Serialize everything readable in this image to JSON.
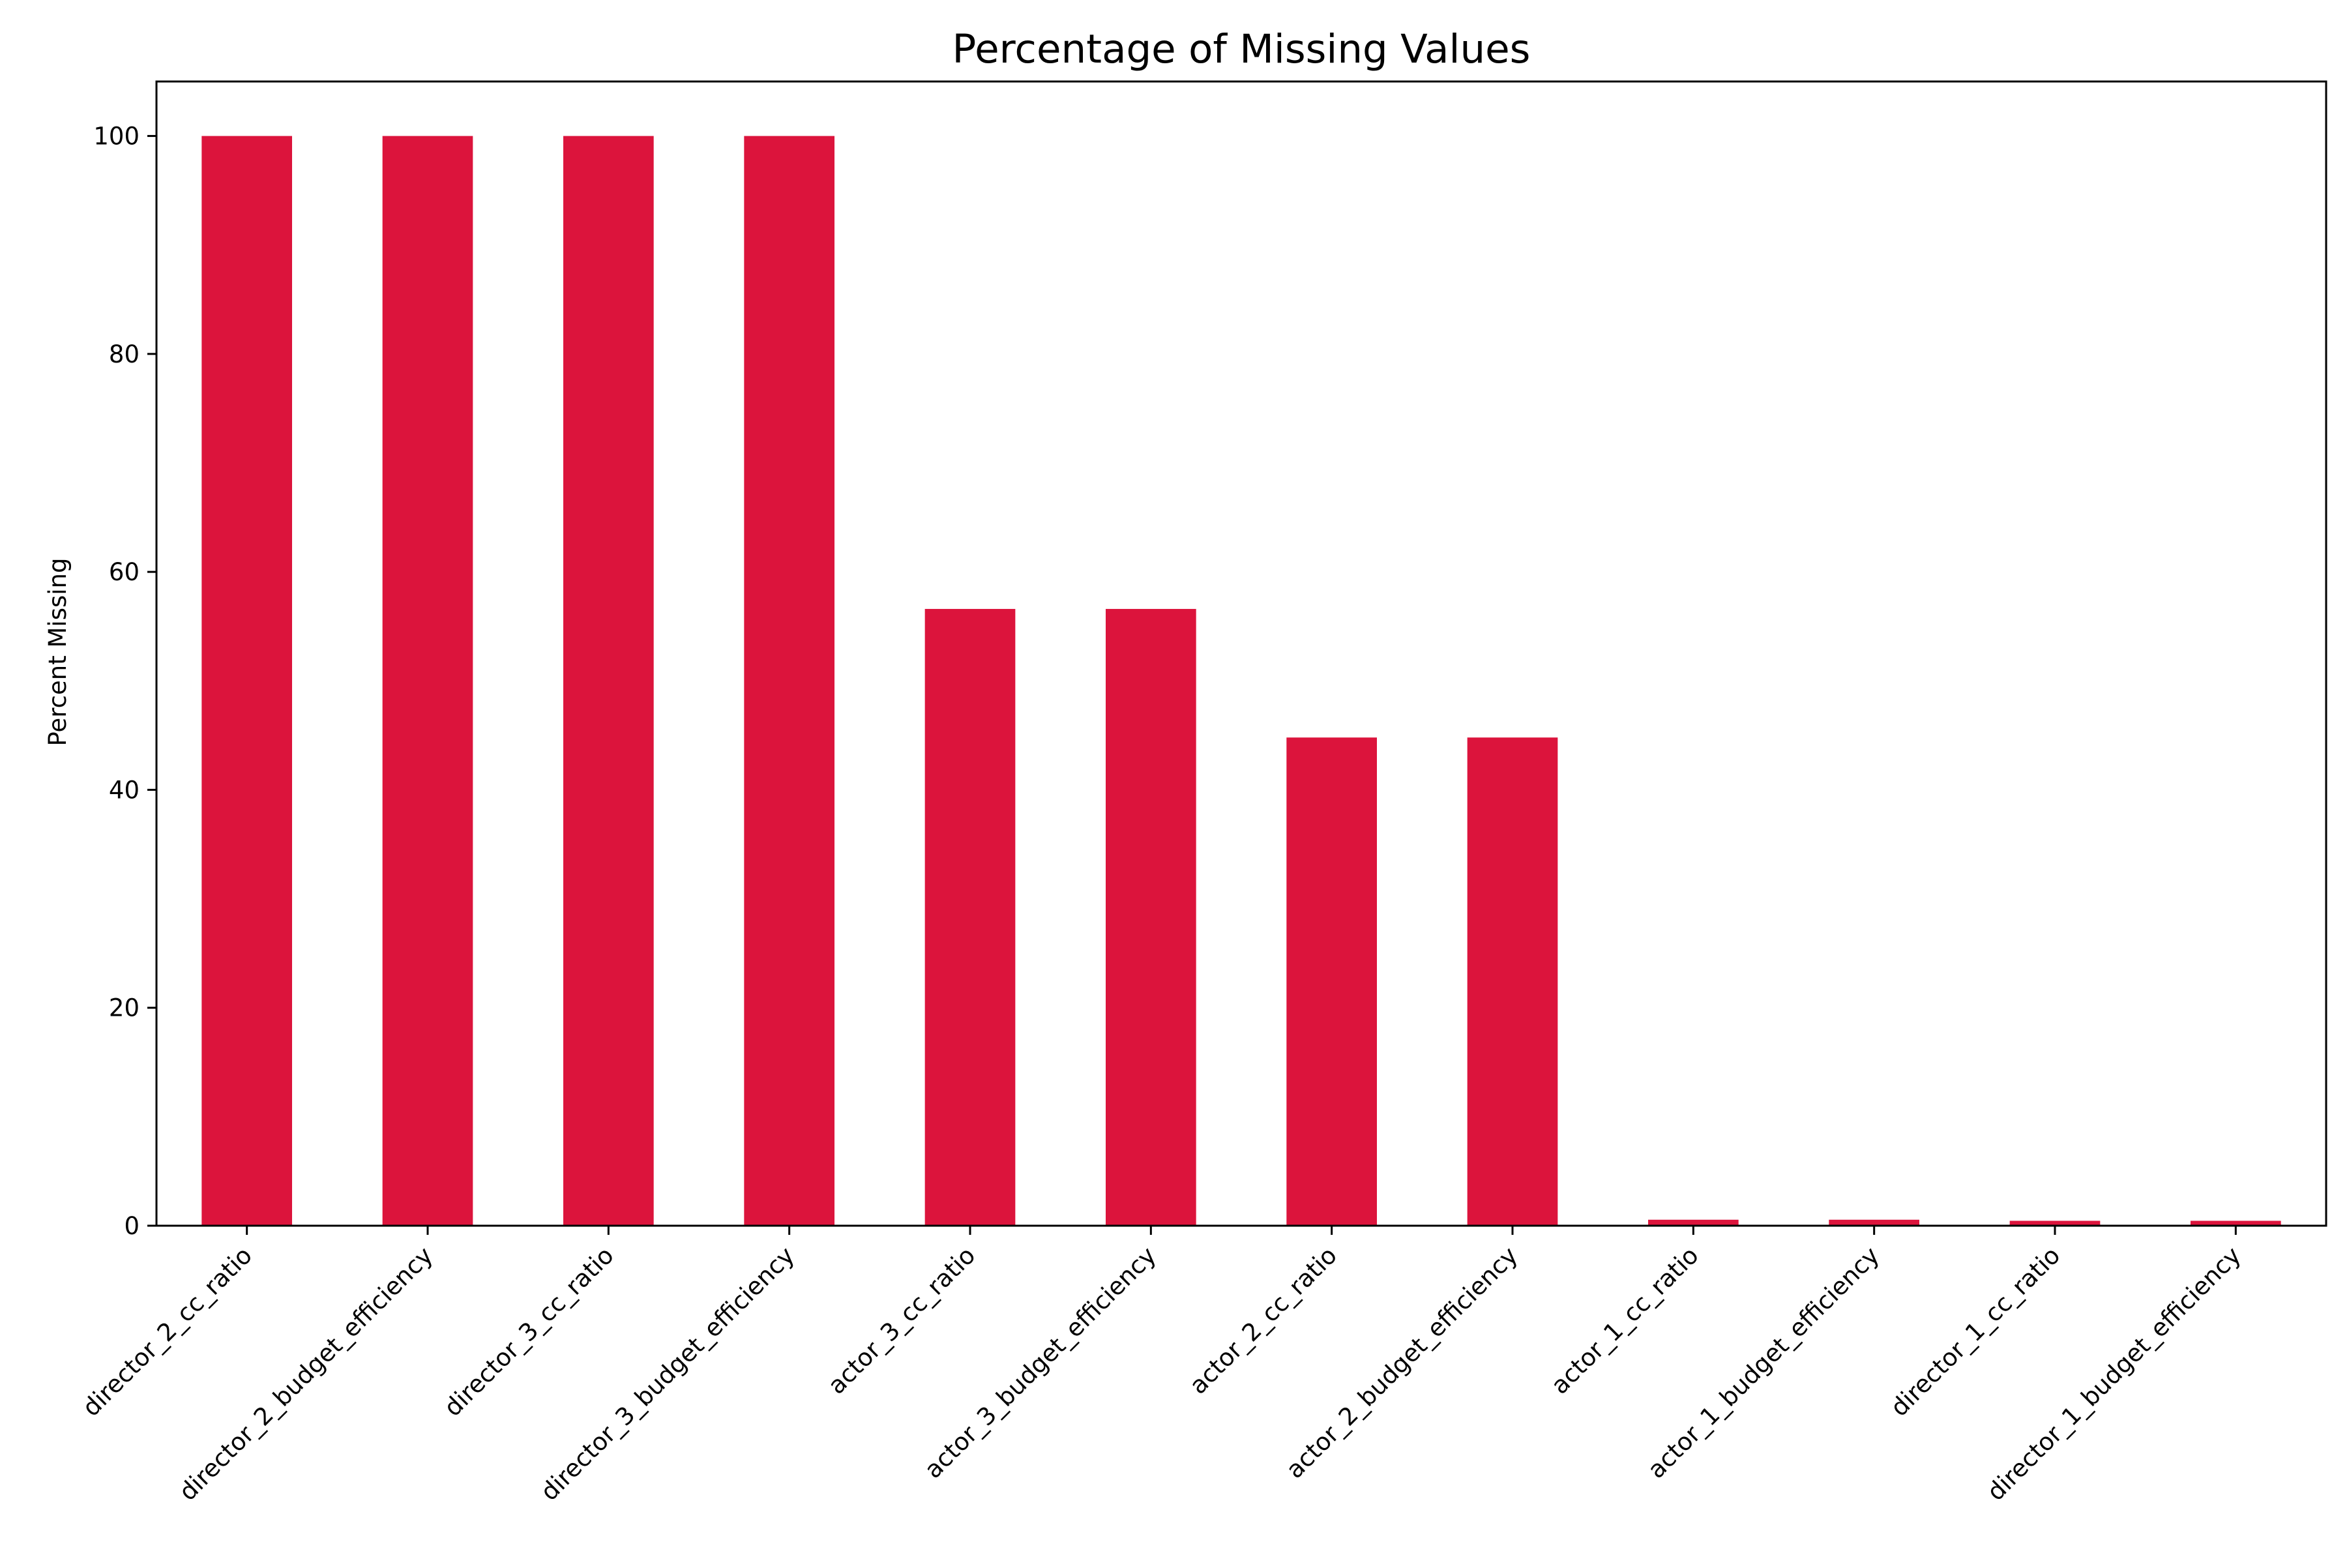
{
  "chart_data": {
    "type": "bar",
    "title": "Percentage of Missing Values",
    "xlabel": "",
    "ylabel": "Percent Missing",
    "categories": [
      "director_2_cc_ratio",
      "director_2_budget_efficiency",
      "director_3_cc_ratio",
      "director_3_budget_efficiency",
      "actor_3_cc_ratio",
      "actor_3_budget_efficiency",
      "actor_2_cc_ratio",
      "actor_2_budget_efficiency",
      "actor_1_cc_ratio",
      "actor_1_budget_efficiency",
      "director_1_cc_ratio",
      "director_1_budget_efficiency"
    ],
    "values": [
      100,
      100,
      100,
      100,
      56.6,
      56.6,
      44.8,
      44.8,
      0.55,
      0.55,
      0.45,
      0.45
    ],
    "ylim": [
      0,
      105
    ],
    "yticks": [
      0,
      20,
      40,
      60,
      80,
      100
    ],
    "bar_color": "#dc143c",
    "grid": false,
    "legend": "none"
  }
}
